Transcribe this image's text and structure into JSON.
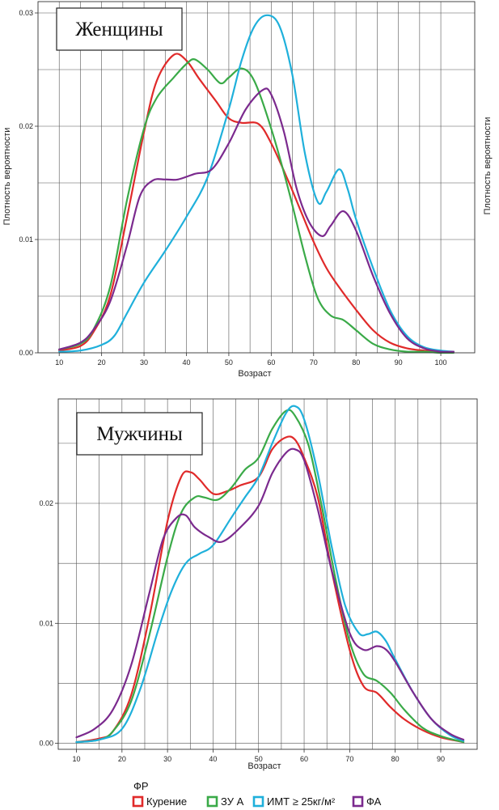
{
  "colors": {
    "smoking": "#e02a2a",
    "ua": "#3aaa48",
    "bmi": "#1fb0db",
    "pa": "#7b2a8e",
    "grid": "#555555",
    "axis": "#333333"
  },
  "legend": {
    "title": "ФР",
    "items": [
      {
        "key": "smoking",
        "label": "Курение"
      },
      {
        "key": "ua",
        "label": "ЗУ А"
      },
      {
        "key": "bmi",
        "label": "ИМТ ≥ 25кг/м²"
      },
      {
        "key": "pa",
        "label": "ФА"
      }
    ]
  },
  "chart_data": [
    {
      "type": "line",
      "title": "Женщины",
      "xlabel": "Возраст",
      "ylabel": "Плотность вероятности",
      "ylabel_right": "Плотность вероятности",
      "xlim": [
        5,
        108
      ],
      "ylim": [
        0,
        0.031
      ],
      "xticks": [
        10,
        20,
        30,
        40,
        50,
        60,
        70,
        80,
        90,
        100
      ],
      "yticks": [
        0.0,
        0.01,
        0.02,
        0.03
      ],
      "ytick_labels": [
        "0.00",
        "0.01",
        "0.02",
        "0.03"
      ],
      "grid": true,
      "series": [
        {
          "name": "Курение",
          "key": "smoking",
          "x": [
            10,
            15,
            18,
            22,
            26,
            30,
            33,
            37,
            40,
            43,
            47,
            50,
            53,
            57,
            60,
            64,
            67,
            70,
            73,
            76,
            80,
            84,
            88,
            92,
            96,
            100,
            103
          ],
          "y": [
            0.0002,
            0.0006,
            0.0018,
            0.005,
            0.012,
            0.0195,
            0.024,
            0.0263,
            0.0258,
            0.0242,
            0.0222,
            0.0207,
            0.0203,
            0.0202,
            0.0185,
            0.0152,
            0.0125,
            0.0098,
            0.0075,
            0.0058,
            0.0038,
            0.002,
            0.0009,
            0.0004,
            0.0002,
            0.0001,
            0.0001
          ]
        },
        {
          "name": "ЗУ А",
          "key": "ua",
          "x": [
            10,
            15,
            18,
            22,
            26,
            30,
            33,
            37,
            40,
            42,
            45,
            48,
            50,
            53,
            56,
            60,
            64,
            68,
            71,
            74,
            77,
            80,
            84,
            88,
            92,
            96,
            100,
            103
          ],
          "y": [
            0.0003,
            0.0008,
            0.002,
            0.0058,
            0.0135,
            0.0198,
            0.0225,
            0.0243,
            0.0255,
            0.0259,
            0.025,
            0.0238,
            0.0243,
            0.0251,
            0.024,
            0.0198,
            0.0145,
            0.0085,
            0.0048,
            0.0033,
            0.0029,
            0.002,
            0.0008,
            0.0003,
            0.0001,
            0.0001,
            0.0,
            0.0
          ]
        },
        {
          "name": "ИМТ ≥ 25кг/м²",
          "key": "bmi",
          "x": [
            10,
            15,
            20,
            23,
            26,
            30,
            35,
            40,
            45,
            50,
            53,
            56,
            59,
            62,
            65,
            68,
            71,
            73,
            76,
            78,
            80,
            84,
            88,
            92,
            96,
            100,
            103
          ],
          "y": [
            0.0001,
            0.0002,
            0.0007,
            0.0015,
            0.0035,
            0.0062,
            0.009,
            0.012,
            0.0155,
            0.0215,
            0.0258,
            0.0288,
            0.0298,
            0.0288,
            0.0245,
            0.0175,
            0.0133,
            0.0142,
            0.0162,
            0.0145,
            0.0118,
            0.0075,
            0.0038,
            0.0015,
            0.0005,
            0.0002,
            0.0001
          ]
        },
        {
          "name": "ФА",
          "key": "pa",
          "x": [
            10,
            15,
            18,
            22,
            26,
            29,
            32,
            35,
            38,
            42,
            46,
            50,
            54,
            58,
            60,
            63,
            66,
            69,
            72,
            74,
            77,
            80,
            84,
            88,
            92,
            96,
            100,
            103
          ],
          "y": [
            0.0003,
            0.0009,
            0.002,
            0.0045,
            0.0095,
            0.0138,
            0.0152,
            0.0153,
            0.0153,
            0.0158,
            0.0162,
            0.0185,
            0.0215,
            0.0232,
            0.0228,
            0.0195,
            0.0145,
            0.0115,
            0.0103,
            0.0112,
            0.0125,
            0.0108,
            0.0068,
            0.0035,
            0.0013,
            0.0004,
            0.0001,
            0.0001
          ]
        }
      ]
    },
    {
      "type": "line",
      "title": "Мужчины",
      "xlabel": "Возраст",
      "ylabel": "",
      "xlim": [
        6,
        98
      ],
      "ylim": [
        -0.0005,
        0.0287
      ],
      "xticks": [
        10,
        20,
        30,
        40,
        50,
        60,
        70,
        80,
        90
      ],
      "yticks": [
        0.0,
        0.01,
        0.02
      ],
      "ytick_labels": [
        "0.00",
        "0.01",
        "0.02"
      ],
      "grid": true,
      "series": [
        {
          "name": "Курение",
          "key": "smoking",
          "x": [
            10,
            15,
            18,
            22,
            26,
            30,
            33,
            35,
            37,
            40,
            43,
            46,
            50,
            53,
            56,
            58,
            60,
            63,
            66,
            70,
            73,
            76,
            79,
            82,
            86,
            90,
            95
          ],
          "y": [
            0.0001,
            0.0004,
            0.001,
            0.004,
            0.0105,
            0.0185,
            0.0222,
            0.0226,
            0.022,
            0.0208,
            0.021,
            0.0215,
            0.0222,
            0.0245,
            0.0255,
            0.0253,
            0.0238,
            0.0205,
            0.0145,
            0.0078,
            0.0048,
            0.0042,
            0.003,
            0.002,
            0.0011,
            0.0005,
            0.0001
          ]
        },
        {
          "name": "ЗУ А",
          "key": "ua",
          "x": [
            10,
            15,
            18,
            22,
            26,
            30,
            33,
            36,
            38,
            41,
            44,
            47,
            50,
            53,
            56,
            58,
            61,
            64,
            67,
            70,
            73,
            76,
            79,
            82,
            86,
            90,
            95
          ],
          "y": [
            0.0001,
            0.0003,
            0.001,
            0.0035,
            0.009,
            0.0155,
            0.0192,
            0.0205,
            0.0205,
            0.0203,
            0.0213,
            0.0228,
            0.0238,
            0.0262,
            0.0277,
            0.0273,
            0.0248,
            0.0195,
            0.0135,
            0.0085,
            0.0058,
            0.0052,
            0.0042,
            0.0028,
            0.0013,
            0.0006,
            0.0001
          ]
        },
        {
          "name": "ИМТ ≥ 25кг/м²",
          "key": "bmi",
          "x": [
            10,
            15,
            20,
            24,
            28,
            31,
            34,
            37,
            40,
            44,
            47,
            50,
            53,
            56,
            58,
            60,
            63,
            66,
            69,
            72,
            74,
            76,
            78,
            80,
            84,
            88,
            92,
            95
          ],
          "y": [
            0.0001,
            0.0003,
            0.0012,
            0.0045,
            0.0095,
            0.0128,
            0.015,
            0.0158,
            0.0165,
            0.0188,
            0.0205,
            0.0222,
            0.025,
            0.0275,
            0.0281,
            0.027,
            0.0225,
            0.0165,
            0.0115,
            0.0092,
            0.0091,
            0.0093,
            0.0085,
            0.007,
            0.0042,
            0.002,
            0.0007,
            0.0002
          ]
        },
        {
          "name": "ФА",
          "key": "pa",
          "x": [
            10,
            14,
            18,
            22,
            26,
            29,
            32,
            34,
            36,
            39,
            42,
            46,
            50,
            53,
            56,
            58,
            60,
            63,
            66,
            70,
            73,
            76,
            78,
            80,
            84,
            88,
            92,
            95
          ],
          "y": [
            0.0005,
            0.0012,
            0.0028,
            0.0065,
            0.0125,
            0.017,
            0.0188,
            0.019,
            0.018,
            0.0172,
            0.0168,
            0.018,
            0.0198,
            0.0225,
            0.0242,
            0.0245,
            0.0236,
            0.0195,
            0.0145,
            0.0092,
            0.0078,
            0.0081,
            0.0078,
            0.0068,
            0.0042,
            0.002,
            0.0008,
            0.0003
          ]
        }
      ]
    }
  ]
}
